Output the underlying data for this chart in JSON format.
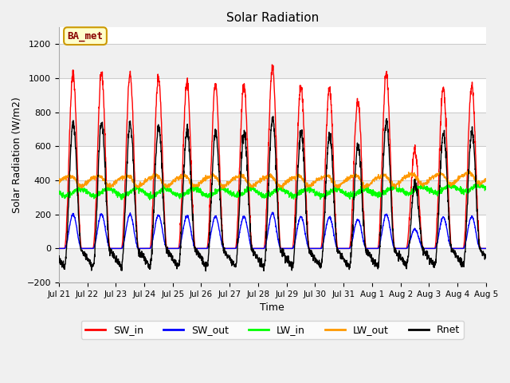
{
  "title": "Solar Radiation",
  "xlabel": "Time",
  "ylabel": "Solar Radiation (W/m2)",
  "ylim": [
    -200,
    1300
  ],
  "yticks": [
    -200,
    0,
    200,
    400,
    600,
    800,
    1000,
    1200
  ],
  "fig_bg_color": "#f0f0f0",
  "plot_bg_color": "#ffffff",
  "band_color_light": "#f0f0f0",
  "band_color_white": "#ffffff",
  "grid_color": "#cccccc",
  "annotation_text": "BA_met",
  "annotation_bg": "#ffffcc",
  "annotation_border": "#cc9900",
  "colors": {
    "SW_in": "#ff0000",
    "SW_out": "#0000ff",
    "LW_in": "#00ff00",
    "LW_out": "#ff9900",
    "Rnet": "#000000"
  },
  "x_tick_labels": [
    "Jul 21",
    "Jul 22",
    "Jul 23",
    "Jul 24",
    "Jul 25",
    "Jul 26",
    "Jul 27",
    "Jul 28",
    "Jul 29",
    "Jul 30",
    "Jul 31",
    "Aug 1",
    "Aug 2",
    "Aug 3",
    "Aug 4",
    "Aug 5"
  ],
  "days": 15,
  "points_per_day": 144
}
